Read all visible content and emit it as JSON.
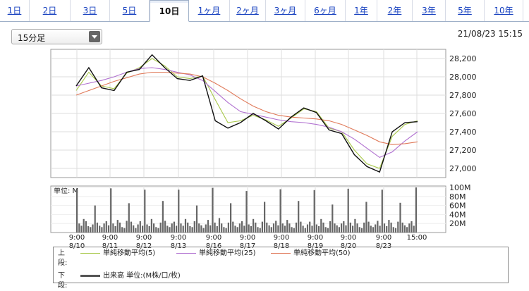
{
  "tabs": [
    {
      "label": "1日",
      "active": false
    },
    {
      "label": "2日",
      "active": false
    },
    {
      "label": "3日",
      "active": false
    },
    {
      "label": "5日",
      "active": false
    },
    {
      "label": "10日",
      "active": true
    },
    {
      "label": "1ヶ月",
      "active": false
    },
    {
      "label": "2ヶ月",
      "active": false
    },
    {
      "label": "3ヶ月",
      "active": false
    },
    {
      "label": "6ヶ月",
      "active": false
    },
    {
      "label": "1年",
      "active": false
    },
    {
      "label": "2年",
      "active": false
    },
    {
      "label": "3年",
      "active": false
    },
    {
      "label": "5年",
      "active": false
    },
    {
      "label": "10年",
      "active": false
    }
  ],
  "interval_select": {
    "value": "15分足"
  },
  "timestamp": "21/08/23 15:15",
  "chart_data": [
    {
      "type": "line",
      "panel": "price",
      "x_labels": [
        "9:00\n8/10",
        "9:00\n8/11",
        "9:00\n8/12",
        "9:00\n8/13",
        "9:00\n8/16",
        "9:00\n8/17",
        "9:00\n8/18",
        "9:00\n8/19",
        "9:00\n8/20",
        "9:00\n8/23",
        "15:00"
      ],
      "ylim": [
        26900,
        28300
      ],
      "yticks": [
        27000,
        27200,
        27400,
        27600,
        27800,
        28000,
        28200
      ],
      "grid": true,
      "series": [
        {
          "name": "単純移動平均(5)",
          "color": "#a8c84a",
          "values": [
            27850,
            28050,
            27900,
            27870,
            28040,
            28100,
            28200,
            28120,
            28000,
            27980,
            28010,
            27750,
            27500,
            27520,
            27580,
            27530,
            27460,
            27550,
            27650,
            27620,
            27440,
            27400,
            27200,
            27050,
            27000,
            27350,
            27480,
            27520
          ]
        },
        {
          "name": "単純移動平均(25)",
          "color": "#b070d0",
          "values": [
            27900,
            27930,
            27960,
            28000,
            28050,
            28090,
            28100,
            28080,
            28050,
            28020,
            27960,
            27840,
            27720,
            27620,
            27590,
            27560,
            27530,
            27510,
            27500,
            27480,
            27450,
            27400,
            27320,
            27220,
            27120,
            27180,
            27300,
            27400
          ]
        },
        {
          "name": "単純移動平均(50)",
          "color": "#e07a5a",
          "values": [
            27800,
            27850,
            27900,
            27950,
            27990,
            28030,
            28050,
            28050,
            28040,
            28030,
            28000,
            27930,
            27850,
            27760,
            27680,
            27620,
            27580,
            27560,
            27550,
            27540,
            27520,
            27480,
            27420,
            27360,
            27290,
            27260,
            27270,
            27290
          ]
        },
        {
          "name": "price",
          "color": "#111",
          "values": [
            27900,
            28100,
            27880,
            27850,
            28050,
            28080,
            28240,
            28100,
            27980,
            27960,
            28010,
            27520,
            27440,
            27500,
            27600,
            27520,
            27430,
            27560,
            27660,
            27610,
            27420,
            27380,
            27150,
            27020,
            26960,
            27400,
            27500,
            27510
          ]
        }
      ]
    },
    {
      "type": "bar",
      "panel": "volume",
      "unit_label": "単位: M",
      "yticks_labels": [
        "100M",
        "80M",
        "60M",
        "40M",
        "20M"
      ],
      "ylim": [
        0,
        100
      ],
      "values": [
        95,
        20,
        15,
        30,
        25,
        14,
        12,
        18,
        60,
        22,
        15,
        12,
        20,
        25,
        16,
        98,
        20,
        14,
        28,
        22,
        12,
        10,
        26,
        65,
        24,
        16,
        10,
        18,
        25,
        15,
        95,
        18,
        14,
        30,
        20,
        12,
        10,
        22,
        70,
        26,
        15,
        12,
        20,
        24,
        15,
        95,
        20,
        15,
        30,
        22,
        14,
        12,
        25,
        60,
        20,
        16,
        10,
        18,
        28,
        16,
        99,
        22,
        14,
        32,
        20,
        12,
        10,
        22,
        65,
        24,
        15,
        12,
        20,
        25,
        15,
        92,
        18,
        14,
        30,
        22,
        12,
        10,
        24,
        68,
        22,
        16,
        12,
        20,
        26,
        16,
        96,
        20,
        15,
        28,
        20,
        12,
        10,
        22,
        70,
        24,
        15,
        10,
        18,
        24,
        15,
        94,
        18,
        14,
        30,
        22,
        12,
        10,
        25,
        62,
        20,
        16,
        12,
        20,
        25,
        16,
        97,
        22,
        15,
        30,
        20,
        12,
        10,
        22,
        68,
        24,
        15,
        12,
        18,
        26,
        15,
        95,
        20,
        14,
        28,
        22,
        12,
        10,
        24,
        66,
        22,
        16,
        12,
        20,
        25,
        15,
        100
      ]
    }
  ],
  "legend": {
    "upper_label": "上段:",
    "lower_label": "下段:",
    "items": [
      {
        "label": "単純移動平均(5)",
        "color": "#a8c84a"
      },
      {
        "label": "単純移動平均(25)",
        "color": "#b070d0"
      },
      {
        "label": "単純移動平均(50)",
        "color": "#e07a5a"
      }
    ],
    "volume_item": {
      "label": "出来高 単位:(M株/口/枚)",
      "color": "#555"
    }
  }
}
